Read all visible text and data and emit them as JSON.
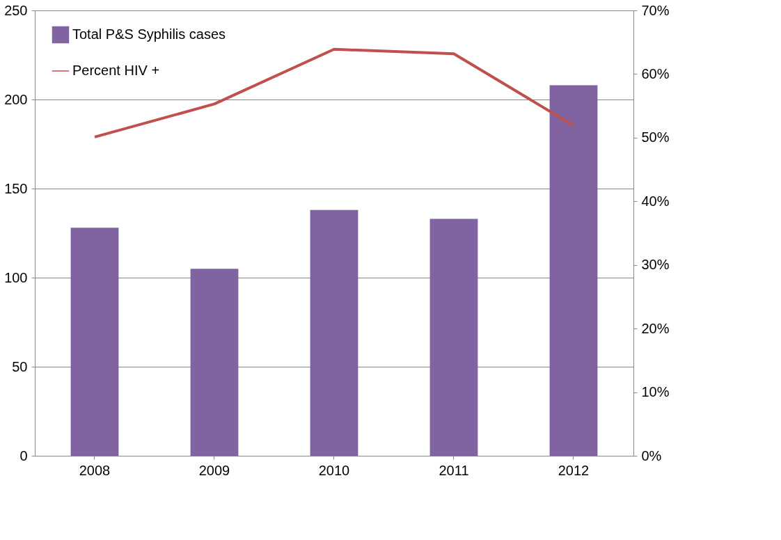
{
  "chart_data": {
    "type": "bar",
    "categories": [
      "2008",
      "2009",
      "2010",
      "2011",
      "2012"
    ],
    "series": [
      {
        "name": "Total P&S Syphilis cases",
        "color": "#8064a2",
        "values": [
          128,
          105,
          138,
          133,
          208
        ]
      },
      {
        "name": "Percent HIV +",
        "type": "line",
        "axis": "y2",
        "color": "#c0504d",
        "values": [
          50.1,
          55.3,
          63.9,
          63.2,
          51.9
        ]
      }
    ],
    "ylim": [
      0,
      250
    ],
    "yticks": [
      0,
      50,
      100,
      150,
      200,
      250
    ],
    "y2lim": [
      0,
      70
    ],
    "y2ticks": [
      {
        "value": 0,
        "label": "0%"
      },
      {
        "value": 10,
        "label": "10%"
      },
      {
        "value": 20,
        "label": "20%"
      },
      {
        "value": 30,
        "label": "30%"
      },
      {
        "value": 40,
        "label": "40%"
      },
      {
        "value": 50,
        "label": "50%"
      },
      {
        "value": 60,
        "label": "60%"
      },
      {
        "value": 70,
        "label": "70%"
      }
    ],
    "grid": "y",
    "legend": "top left",
    "marker": "none",
    "line_style": "solid"
  }
}
